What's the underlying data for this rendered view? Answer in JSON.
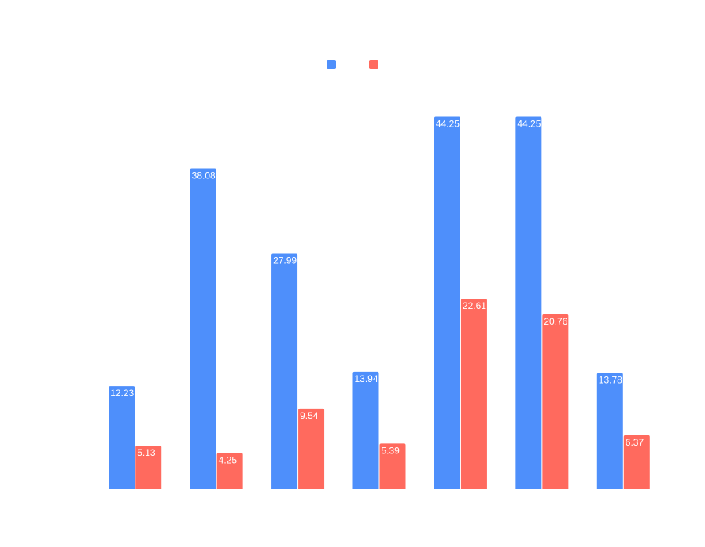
{
  "chart_data": {
    "type": "bar",
    "categories": [
      "",
      "",
      "",
      "",
      "",
      "",
      ""
    ],
    "series": [
      {
        "values": [
          12.23,
          38.08,
          27.99,
          13.94,
          44.25,
          44.25,
          13.78
        ],
        "color": "#4e8ffb"
      },
      {
        "values": [
          5.13,
          4.25,
          9.54,
          5.39,
          22.61,
          20.76,
          6.37
        ],
        "color": "#ff6a5e"
      }
    ],
    "ylim": [
      0,
      50
    ],
    "grid": false,
    "legend": "top-center",
    "data_labels": "inside-top"
  }
}
